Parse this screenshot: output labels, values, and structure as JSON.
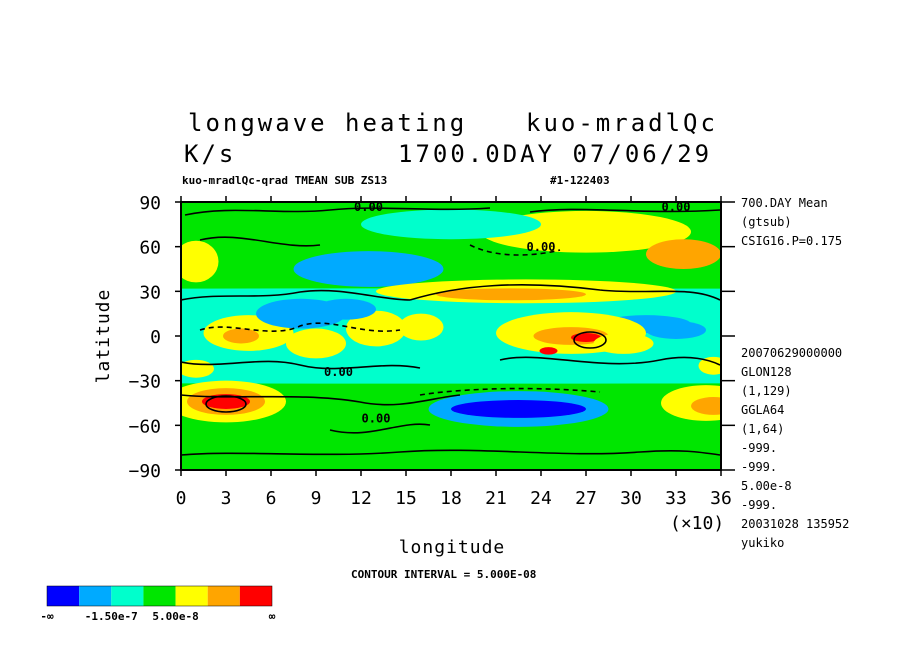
{
  "title": {
    "line1_left": "longwave heating",
    "line1_right": "kuo-mradlQc",
    "line2_left": "K/s",
    "line2_right": "1700.0DAY 07/06/29"
  },
  "subheader": {
    "left": "kuo-mradlQc-qrad TMEAN SUB ZS13",
    "right": "#1-122403"
  },
  "side_info": {
    "top": [
      "700.DAY Mean",
      "(gtsub)",
      "CSIG16.P=0.175"
    ],
    "bottom": [
      "20070629000000",
      "GLON128",
      "(1,129)",
      "GGLA64",
      "(1,64)",
      "-999.",
      "-999.",
      "5.00e-8",
      "-999.",
      "20031028 135952",
      "yukiko"
    ]
  },
  "contour_interval": "CONTOUR INTERVAL = 5.000E-08",
  "colorbar": {
    "colors": [
      "#0000ff",
      "#00aaff",
      "#00ffcc",
      "#00e600",
      "#ffff00",
      "#ffa500",
      "#ff0000"
    ],
    "labels": [
      "-∞",
      "-1.50e-7",
      "5.00e-8",
      "∞"
    ]
  },
  "chart_data": {
    "type": "heatmap",
    "xlabel": "longitude",
    "ylabel": "latitude",
    "x_multiplier": "(×10)",
    "xlim": [
      0,
      36
    ],
    "ylim": [
      -90,
      90
    ],
    "x_ticks": [
      0,
      3,
      6,
      9,
      12,
      15,
      18,
      21,
      24,
      27,
      30,
      33,
      36
    ],
    "y_ticks": [
      90,
      60,
      30,
      0,
      -30,
      -60,
      -90
    ],
    "x_tick_labels": [
      "0",
      "3",
      "6",
      "9",
      "12",
      "15",
      "18",
      "21",
      "24",
      "27",
      "30",
      "33",
      "36"
    ],
    "y_tick_labels": [
      "90",
      "60",
      "30",
      "0",
      "−30",
      "−60",
      "−90"
    ],
    "contour_labels": [
      {
        "text": "0.00",
        "lon": 12.5,
        "lat": 84
      },
      {
        "text": "0.00",
        "lon": 33,
        "lat": 84
      },
      {
        "text": "0.00",
        "lon": 24,
        "lat": 57
      },
      {
        "text": "0.00",
        "lon": 10.5,
        "lat": -27
      },
      {
        "text": "0.00",
        "lon": 13,
        "lat": -58
      }
    ],
    "regions": [
      {
        "level": 3,
        "lon": 18,
        "lat": 0,
        "rx": 180,
        "ry": 90
      },
      {
        "level": 2,
        "lon": 18,
        "lat": 0,
        "rx": 180,
        "ry": 32
      },
      {
        "level": 4,
        "lon": 27,
        "lat": 70,
        "rx": 7,
        "ry": 14
      },
      {
        "level": 5,
        "lon": 33.5,
        "lat": 55,
        "rx": 2.5,
        "ry": 10
      },
      {
        "level": 4,
        "lon": 1,
        "lat": 50,
        "rx": 1.5,
        "ry": 14
      },
      {
        "level": 2,
        "lon": 18,
        "lat": 75,
        "rx": 6,
        "ry": 10
      },
      {
        "level": 1,
        "lon": 12.5,
        "lat": 45,
        "rx": 5,
        "ry": 12
      },
      {
        "level": 4,
        "lon": 23,
        "lat": 30,
        "rx": 10,
        "ry": 8
      },
      {
        "level": 5,
        "lon": 22,
        "lat": 28,
        "rx": 5,
        "ry": 4
      },
      {
        "level": 4,
        "lon": 3,
        "lat": -44,
        "rx": 4,
        "ry": 14
      },
      {
        "level": 5,
        "lon": 3,
        "lat": -44,
        "rx": 2.6,
        "ry": 9
      },
      {
        "level": 6,
        "lon": 3,
        "lat": -44,
        "rx": 1.6,
        "ry": 5
      },
      {
        "level": 4,
        "lon": 35,
        "lat": -45,
        "rx": 3,
        "ry": 12
      },
      {
        "level": 5,
        "lon": 35.5,
        "lat": -47,
        "rx": 1.5,
        "ry": 6
      },
      {
        "level": 1,
        "lon": 22.5,
        "lat": -49,
        "rx": 6,
        "ry": 12
      },
      {
        "level": 0,
        "lon": 22.5,
        "lat": -49,
        "rx": 4.5,
        "ry": 6
      },
      {
        "level": 1,
        "lon": 31,
        "lat": 8,
        "rx": 3,
        "ry": 6
      },
      {
        "level": 4,
        "lon": 26,
        "lat": 2,
        "rx": 5,
        "ry": 14
      },
      {
        "level": 5,
        "lon": 26,
        "lat": 0,
        "rx": 2.5,
        "ry": 6
      },
      {
        "level": 6,
        "lon": 27,
        "lat": -1,
        "rx": 1,
        "ry": 3
      },
      {
        "level": 6,
        "lon": 24.5,
        "lat": -10,
        "rx": 0.6,
        "ry": 2.5
      },
      {
        "level": 4,
        "lon": 29.5,
        "lat": -5,
        "rx": 2,
        "ry": 7
      },
      {
        "level": 4,
        "lon": 4.5,
        "lat": 2,
        "rx": 3,
        "ry": 12
      },
      {
        "level": 5,
        "lon": 4,
        "lat": 0,
        "rx": 1.2,
        "ry": 5
      },
      {
        "level": 4,
        "lon": 9,
        "lat": -5,
        "rx": 2,
        "ry": 10
      },
      {
        "level": 4,
        "lon": 13,
        "lat": 5,
        "rx": 2,
        "ry": 12
      },
      {
        "level": 4,
        "lon": 16,
        "lat": 6,
        "rx": 1.5,
        "ry": 9
      },
      {
        "level": 1,
        "lon": 8,
        "lat": 15,
        "rx": 3,
        "ry": 10
      },
      {
        "level": 1,
        "lon": 11,
        "lat": 18,
        "rx": 2,
        "ry": 7
      },
      {
        "level": 1,
        "lon": 33,
        "lat": 4,
        "rx": 2,
        "ry": 6
      },
      {
        "level": 4,
        "lon": 35.5,
        "lat": -20,
        "rx": 1,
        "ry": 6
      },
      {
        "level": 4,
        "lon": 1,
        "lat": -22,
        "rx": 1.2,
        "ry": 6
      }
    ]
  }
}
